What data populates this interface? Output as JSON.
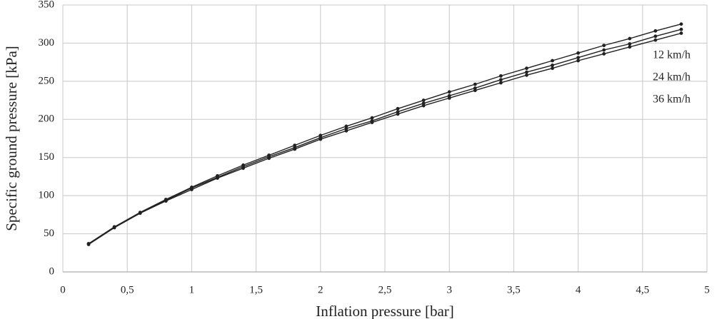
{
  "chart_data": {
    "type": "line",
    "x_label": "Inflation pressure [bar]",
    "y_label": "Specific ground pressure [kPa]",
    "x": [
      0.2,
      0.4,
      0.6,
      0.8,
      1,
      1.2,
      1.4,
      1.6,
      1.8,
      2,
      2.2,
      2.4,
      2.6,
      2.8,
      3,
      3.2,
      3.4,
      3.6,
      3.8,
      4,
      4.2,
      4.4,
      4.6,
      4.8
    ],
    "series": [
      {
        "name": "12 km/h",
        "color": "#222222",
        "values": [
          37,
          59,
          78,
          95,
          111,
          126,
          140,
          153,
          166,
          179,
          191,
          202,
          214,
          225,
          236,
          246,
          257,
          267,
          277,
          287,
          297,
          306,
          316,
          325
        ]
      },
      {
        "name": "24 km/h",
        "color": "#222222",
        "values": [
          37,
          59,
          77,
          94,
          110,
          124,
          138,
          151,
          163,
          176,
          188,
          198,
          210,
          221,
          231,
          241,
          252,
          262,
          271,
          281,
          291,
          299,
          309,
          318
        ]
      },
      {
        "name": "36 km/h",
        "color": "#222222",
        "values": [
          36,
          58,
          77,
          93,
          108,
          123,
          136,
          149,
          161,
          174,
          185,
          196,
          207,
          218,
          228,
          238,
          248,
          258,
          267,
          277,
          286,
          295,
          304,
          313
        ]
      }
    ],
    "xlim": [
      0,
      5
    ],
    "xticks": [
      0,
      {
        "value": 0.5,
        "label": "0,5"
      },
      1,
      {
        "value": 1.5,
        "label": "1,5"
      },
      2,
      {
        "value": 2.5,
        "label": "2,5"
      },
      3,
      {
        "value": 3.5,
        "label": "3,5"
      },
      4,
      {
        "value": 4.5,
        "label": "4,5"
      },
      5
    ],
    "ylim": [
      0,
      350
    ],
    "yticks": [
      0,
      50,
      100,
      150,
      200,
      250,
      300,
      350
    ],
    "grid": true
  }
}
